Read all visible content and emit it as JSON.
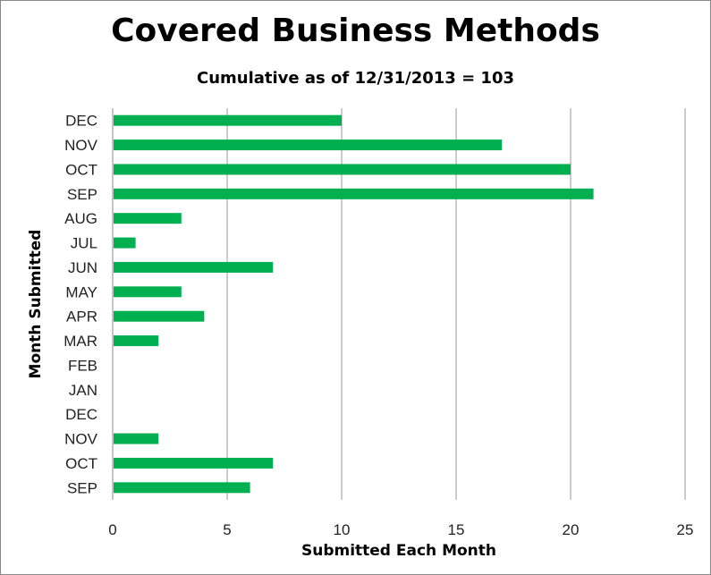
{
  "chart_data": {
    "type": "bar",
    "orientation": "horizontal",
    "title": "Covered Business Methods",
    "subtitle": "Cumulative as of 12/31/2013 = 103",
    "xlabel": "Submitted Each Month",
    "ylabel": "Month Submitted",
    "categories": [
      "DEC",
      "NOV",
      "OCT",
      "SEP",
      "AUG",
      "JUL",
      "JUN",
      "MAY",
      "APR",
      "MAR",
      "FEB",
      "JAN",
      "DEC",
      "NOV",
      "OCT",
      "SEP"
    ],
    "values": [
      10,
      17,
      20,
      21,
      3,
      1,
      7,
      3,
      4,
      2,
      0,
      0,
      0,
      2,
      7,
      6
    ],
    "xlim": [
      0,
      25
    ],
    "xticks": [
      0,
      5,
      10,
      15,
      20,
      25
    ],
    "grid": true,
    "color": "#00b050"
  }
}
